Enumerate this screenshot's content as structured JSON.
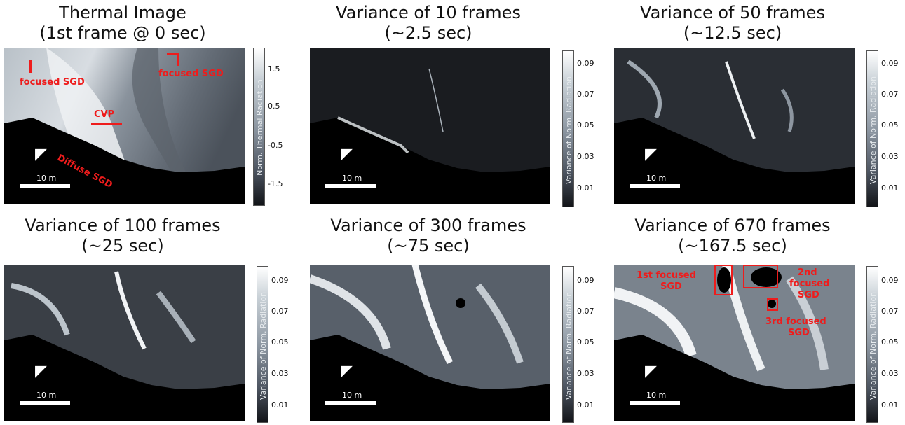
{
  "panels": [
    {
      "title1": "Thermal Image",
      "title2": "(1st frame @ 0 sec)",
      "colorbar_label": "Norm. Thermal Radiation",
      "ticks": [
        "1.5",
        "0.5",
        "-0.5",
        "-1.5"
      ],
      "scale_label": "10 m",
      "annotations": {
        "focused_sgd_left": "focused SGD",
        "focused_sgd_right": "focused SGD",
        "cvp": "CVP",
        "diffuse_sgd": "Diffuse SGD"
      }
    },
    {
      "title1": "Variance of 10 frames",
      "title2": "(~2.5 sec)",
      "colorbar_label": "Variance of Norm. Radiation",
      "ticks": [
        "0.09",
        "0.07",
        "0.05",
        "0.03",
        "0.01"
      ],
      "scale_label": "10 m"
    },
    {
      "title1": "Variance of 50 frames",
      "title2": "(~12.5 sec)",
      "colorbar_label": "Variance of Norm. Radiation",
      "ticks": [
        "0.09",
        "0.07",
        "0.05",
        "0.03",
        "0.01"
      ],
      "scale_label": "10 m"
    },
    {
      "title1": "Variance of 100 frames",
      "title2": "(~25 sec)",
      "colorbar_label": "Variance of Norm. Radiation",
      "ticks": [
        "0.09",
        "0.07",
        "0.05",
        "0.03",
        "0.01"
      ],
      "scale_label": "10 m"
    },
    {
      "title1": "Variance of 300 frames",
      "title2": "(~75 sec)",
      "colorbar_label": "Variance of Norm. Radiation",
      "ticks": [
        "0.09",
        "0.07",
        "0.05",
        "0.03",
        "0.01"
      ],
      "scale_label": "10 m"
    },
    {
      "title1": "Variance of 670 frames",
      "title2": "(~167.5 sec)",
      "colorbar_label": "Variance of Norm. Radiation",
      "ticks": [
        "0.09",
        "0.07",
        "0.05",
        "0.03",
        "0.01"
      ],
      "scale_label": "10 m",
      "annotations": {
        "first_focused": "1st focused",
        "first_sgd": "SGD",
        "second_2nd": "2nd",
        "second_focused": "focused",
        "second_sgd": "SGD",
        "third_focused": "3rd focused",
        "third_sgd": "SGD"
      }
    }
  ],
  "colors": {
    "annotation_red": "#ee1c1c"
  }
}
